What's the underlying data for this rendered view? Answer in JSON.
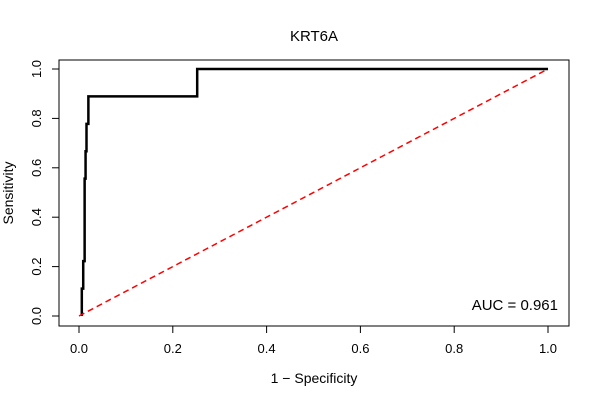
{
  "chart_data": {
    "type": "line",
    "title": "KRT6A",
    "xlabel": "1 − Specificity",
    "ylabel": "Sensitivity",
    "xlim": [
      0,
      1
    ],
    "ylim": [
      0,
      1
    ],
    "x_ticks": [
      "0.0",
      "0.2",
      "0.4",
      "0.6",
      "0.8",
      "1.0"
    ],
    "y_ticks": [
      "0.0",
      "0.2",
      "0.4",
      "0.6",
      "0.8",
      "1.0"
    ],
    "grid": false,
    "annotation": "AUC = 0.961",
    "series": [
      {
        "color": "#000000",
        "style": "solid",
        "x": [
          0.006,
          0.006,
          0.009,
          0.009,
          0.012,
          0.012,
          0.014,
          0.014,
          0.016,
          0.016,
          0.02,
          0.02,
          0.023,
          0.023,
          0.252,
          0.252,
          1.0
        ],
        "y": [
          0.0,
          0.111,
          0.111,
          0.222,
          0.222,
          0.556,
          0.556,
          0.667,
          0.667,
          0.778,
          0.778,
          0.889,
          0.889,
          0.889,
          0.889,
          1.0,
          1.0
        ]
      },
      {
        "color": "#ff0000",
        "style": "dashed",
        "x": [
          0,
          1
        ],
        "y": [
          0,
          1
        ]
      }
    ]
  }
}
